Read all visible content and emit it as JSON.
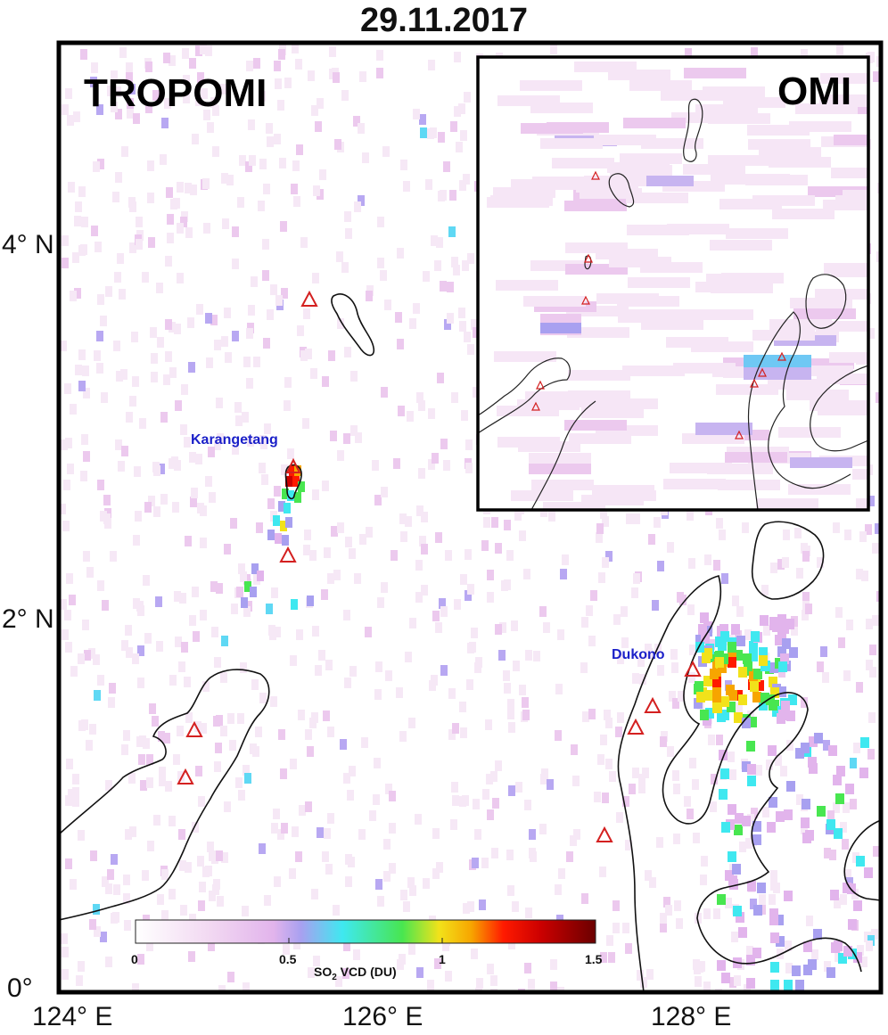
{
  "title": "29.11.2017",
  "panel_main_label": "TROPOMI",
  "panel_inset_label": "OMI",
  "volcano_labels": {
    "karangetang": "Karangetang",
    "dukono": "Dukono"
  },
  "lat_labels": [
    {
      "value": 4,
      "text": "4° N"
    },
    {
      "value": 2,
      "text": "2° N"
    },
    {
      "value": 0,
      "text": "0°"
    }
  ],
  "lon_labels": [
    {
      "value": 124,
      "text": "124° E"
    },
    {
      "value": 126,
      "text": "126° E"
    },
    {
      "value": 128,
      "text": "128° E"
    }
  ],
  "colorbar": {
    "title_main": "SO",
    "title_sub": "2",
    "title_rest": " VCD (DU)",
    "ticks": [
      "0",
      "0.5",
      "1",
      "1.5"
    ],
    "min": 0,
    "max": 1.5,
    "colors": [
      "#ffffff",
      "#f2d9f2",
      "#e2b4ec",
      "#a8a0f0",
      "#3fe8f0",
      "#48e650",
      "#f2e21a",
      "#f7a500",
      "#ff1a00",
      "#cc0000",
      "#6b0000"
    ]
  },
  "map_colors": {
    "coastline": "#111111",
    "volcano_marker": "#d42020",
    "frame": "#000000"
  }
}
